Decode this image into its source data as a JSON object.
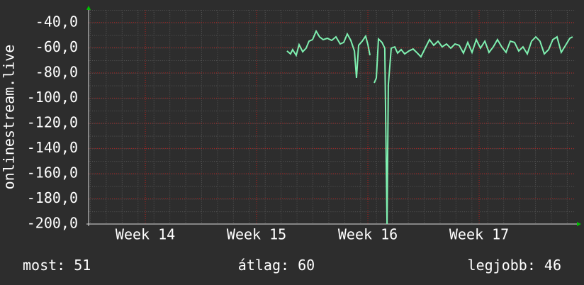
{
  "chart_data": {
    "type": "line",
    "y_label": "onlinestream.live",
    "ylim": [
      -200,
      -30
    ],
    "yticks": [
      {
        "value": -40,
        "label": "-40,0"
      },
      {
        "value": -60,
        "label": "-60,0"
      },
      {
        "value": -80,
        "label": "-80,0"
      },
      {
        "value": -100,
        "label": "-100,0"
      },
      {
        "value": -120,
        "label": "-120,0"
      },
      {
        "value": -140,
        "label": "-140,0"
      },
      {
        "value": -160,
        "label": "-160,0"
      },
      {
        "value": -180,
        "label": "-180,0"
      },
      {
        "value": -200,
        "label": "-200,0"
      }
    ],
    "xlim": [
      13.49,
      17.866
    ],
    "xticks": [
      {
        "value": 14,
        "label": "Week 14"
      },
      {
        "value": 15,
        "label": "Week 15"
      },
      {
        "value": 16,
        "label": "Week 16"
      },
      {
        "value": 17,
        "label": "Week 17"
      }
    ],
    "grid": true,
    "series": [
      {
        "color": "#7ff0b0",
        "x": [
          15.273,
          15.305,
          15.324,
          15.356,
          15.382,
          15.414,
          15.445,
          15.471,
          15.503,
          15.535,
          15.566,
          15.598,
          15.636,
          15.675,
          15.713,
          15.751,
          15.783,
          15.815,
          15.847,
          15.879,
          15.898,
          15.917,
          15.949,
          15.98,
          16.0,
          16.019,
          16.038,
          16.057,
          16.076,
          16.095,
          16.127,
          16.152,
          16.172,
          16.184,
          16.21,
          16.242,
          16.267,
          16.299,
          16.331,
          16.369,
          16.407,
          16.445,
          16.477,
          16.515,
          16.554,
          16.592,
          16.63,
          16.668,
          16.707,
          16.745,
          16.783,
          16.821,
          16.859,
          16.898,
          16.936,
          16.974,
          17.012,
          17.051,
          17.089,
          17.127,
          17.165,
          17.203,
          17.242,
          17.28,
          17.318,
          17.356,
          17.394,
          17.433,
          17.471,
          17.509,
          17.547,
          17.586,
          17.624,
          17.662,
          17.7,
          17.738,
          17.777,
          17.815,
          17.84
        ],
        "values": [
          -62.6,
          -64.9,
          -61.5,
          -66,
          -57.6,
          -63.2,
          -60.4,
          -54.8,
          -53.6,
          -46.9,
          -51.4,
          -53.6,
          -52.5,
          -54.2,
          -51.4,
          -57,
          -55.8,
          -49.1,
          -54.2,
          -62.6,
          -84,
          -58.1,
          -54.8,
          -50.8,
          -57.6,
          -66,
          null,
          -88,
          -84,
          -53.1,
          -55.8,
          -60.4,
          -200,
          -89.7,
          -60.4,
          -59.3,
          -64.3,
          -61.5,
          -64.9,
          -62.6,
          -61,
          -64.3,
          -67.2,
          -60.4,
          -53.6,
          -58.1,
          -54.8,
          -59.3,
          -57,
          -60.4,
          -57,
          -58.1,
          -64.3,
          -55.8,
          -63.7,
          -53.6,
          -60.4,
          -54.8,
          -63.7,
          -59.3,
          -53.6,
          -59.3,
          -63.7,
          -54.8,
          -55.8,
          -62.6,
          -59.3,
          -64.9,
          -54.8,
          -51.4,
          -54.8,
          -64.9,
          -61.5,
          -53.6,
          -51.4,
          -63.7,
          -58.1,
          -52.5,
          -51.4
        ]
      }
    ],
    "stats": [
      {
        "label": "most:",
        "value": 51
      },
      {
        "label": "átlag:",
        "value": 60
      },
      {
        "label": "legjobb:",
        "value": 46
      }
    ]
  }
}
